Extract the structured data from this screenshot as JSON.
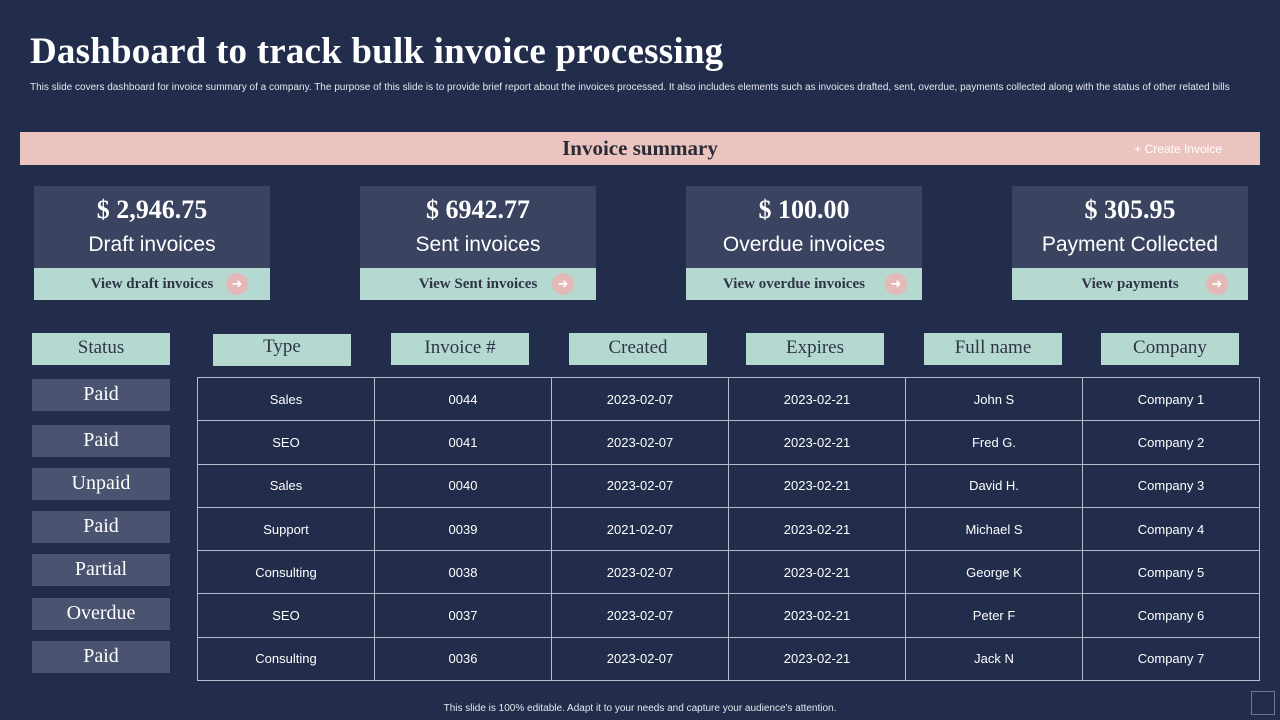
{
  "page": {
    "title": "Dashboard to track bulk invoice processing",
    "subtitle": "This slide covers dashboard for invoice summary of a company. The purpose of this slide is to provide brief report about the invoices processed. It also includes elements  such as invoices drafted, sent, overdue, payments collected along  with the status of other related bills",
    "footer": "This slide is 100% editable.  Adapt it to your needs and capture your audience's attention."
  },
  "summary": {
    "title": "Invoice summary",
    "create_label": "+ Create Invoice"
  },
  "cards": [
    {
      "amount": "$ 2,946.75",
      "label": "Draft invoices",
      "link": "View draft invoices",
      "icon": "arrow-right-icon"
    },
    {
      "amount": "$ 6942.77",
      "label": "Sent invoices",
      "link": "View Sent invoices",
      "icon": "arrow-right-icon"
    },
    {
      "amount": "$ 100.00",
      "label": "Overdue invoices",
      "link": "View overdue invoices",
      "icon": "arrow-right-icon"
    },
    {
      "amount": "$ 305.95",
      "label": "Payment Collected",
      "link": "View payments",
      "icon": "arrow-right-icon"
    }
  ],
  "table": {
    "headers": [
      "Status",
      "Type",
      "Invoice #",
      "Created",
      "Expires",
      "Full name",
      "Company"
    ],
    "rows": [
      {
        "status": "Paid",
        "type": "Sales",
        "invoice": "0044",
        "created": "2023-02-07",
        "expires": "2023-02-21",
        "name": "John S",
        "company": "Company 1"
      },
      {
        "status": "Paid",
        "type": "SEO",
        "invoice": "0041",
        "created": "2023-02-07",
        "expires": "2023-02-21",
        "name": "Fred G.",
        "company": "Company 2"
      },
      {
        "status": "Unpaid",
        "type": "Sales",
        "invoice": "0040",
        "created": "2023-02-07",
        "expires": "2023-02-21",
        "name": "David  H.",
        "company": "Company 3"
      },
      {
        "status": "Paid",
        "type": "Support",
        "invoice": "0039",
        "created": "2021-02-07",
        "expires": "2023-02-21",
        "name": "Michael S",
        "company": "Company 4"
      },
      {
        "status": "Partial",
        "type": "Consulting",
        "invoice": "0038",
        "created": "2023-02-07",
        "expires": "2023-02-21",
        "name": "George  K",
        "company": "Company 5"
      },
      {
        "status": "Overdue",
        "type": "SEO",
        "invoice": "0037",
        "created": "2023-02-07",
        "expires": "2023-02-21",
        "name": "Peter F",
        "company": "Company 6"
      },
      {
        "status": "Paid",
        "type": "Consulting",
        "invoice": "0036",
        "created": "2023-02-07",
        "expires": "2023-02-21",
        "name": "Jack N",
        "company": "Company 7"
      }
    ]
  },
  "colors": {
    "background": "#222d4b",
    "summary_bar": "#ecc4bf",
    "card": "#3a435f",
    "accent": "#b5d9d1",
    "status_badge": "#4a5470",
    "arrow_badge": "#e3b8b6"
  }
}
